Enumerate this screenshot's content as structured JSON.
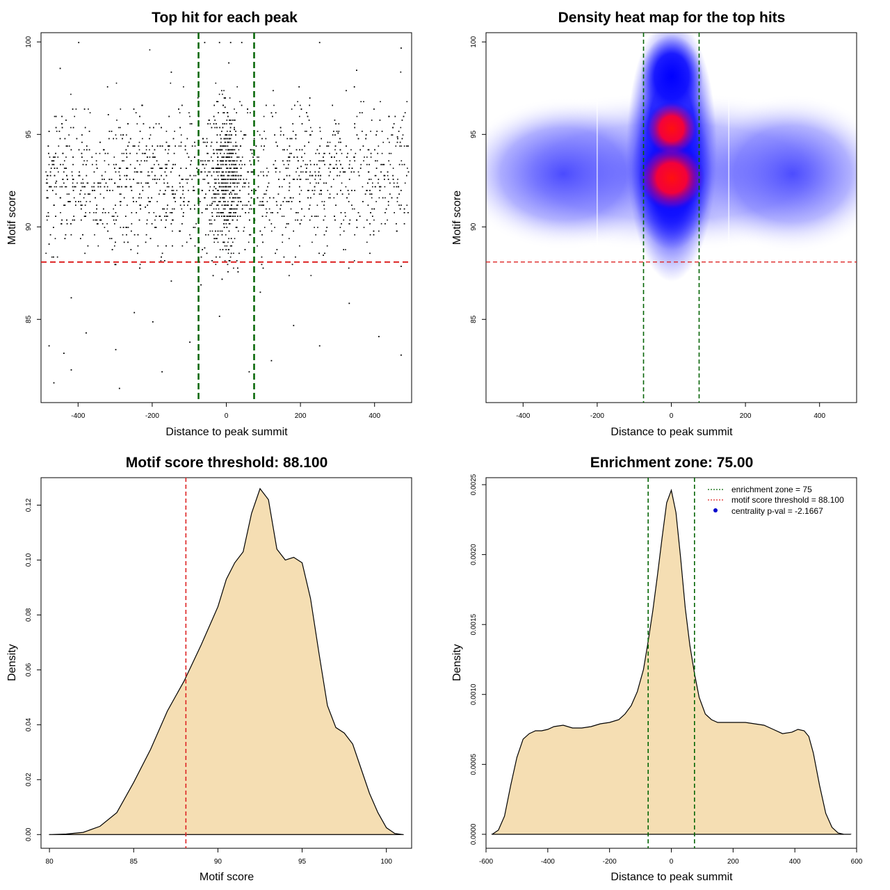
{
  "chart_data": [
    {
      "type": "scatter",
      "title": "Top hit for each peak",
      "xlabel": "Distance to peak summit",
      "ylabel": "Motif score",
      "xlim": [
        -500,
        500
      ],
      "ylim": [
        80.5,
        100.5
      ],
      "xticks": [
        -400,
        -200,
        0,
        200,
        400
      ],
      "xtick_labels": [
        "-400",
        "-200",
        "0",
        "200",
        "400"
      ],
      "yticks": [
        85,
        90,
        95,
        100
      ],
      "ytick_labels": [
        "85",
        "90",
        "95",
        "100"
      ],
      "vlines": [
        -75,
        75
      ],
      "hline": 88.1,
      "vline_color": "#006400",
      "hline_color": "#dd2222",
      "point_color": "#000000",
      "sample_points": [
        [
          -480,
          83.6
        ],
        [
          -467,
          81.6
        ],
        [
          -420,
          82.3
        ],
        [
          -290,
          81.3
        ],
        [
          -175,
          82.2
        ],
        [
          60,
          82.2
        ],
        [
          -60,
          100
        ],
        [
          -20,
          100
        ],
        [
          10,
          100
        ],
        [
          40,
          100
        ],
        [
          -400,
          100
        ],
        [
          250,
          100
        ],
        [
          470,
          99.7
        ],
        [
          -450,
          98.6
        ],
        [
          -150,
          98.4
        ],
        [
          5,
          98.9
        ],
        [
          350,
          98.5
        ],
        [
          -320,
          96.1
        ],
        [
          -5,
          96.5
        ],
        [
          120,
          96.2
        ],
        [
          -480,
          95.2
        ],
        [
          -260,
          94.8
        ],
        [
          20,
          95.3
        ],
        [
          300,
          95.1
        ],
        [
          460,
          94.9
        ],
        [
          -380,
          93.4
        ],
        [
          -110,
          93.2
        ],
        [
          -10,
          93.6
        ],
        [
          30,
          92.8
        ],
        [
          200,
          93.3
        ],
        [
          -460,
          92.5
        ],
        [
          -30,
          92.1
        ],
        [
          10,
          91.9
        ],
        [
          380,
          92.4
        ],
        [
          -220,
          91.1
        ],
        [
          -40,
          91.3
        ],
        [
          50,
          90.8
        ],
        [
          430,
          91
        ],
        [
          -350,
          90.2
        ],
        [
          0,
          90.4
        ],
        [
          150,
          89.6
        ],
        [
          -480,
          89.1
        ],
        [
          -60,
          88.9
        ],
        [
          260,
          88.5
        ],
        [
          -300,
          88
        ],
        [
          30,
          87.6
        ],
        [
          470,
          87.9
        ],
        [
          -150,
          87.1
        ],
        [
          90,
          86.5
        ],
        [
          -420,
          86.2
        ],
        [
          330,
          85.9
        ],
        [
          -250,
          85.4
        ],
        [
          -20,
          85.2
        ],
        [
          180,
          84.7
        ],
        [
          -380,
          84.3
        ],
        [
          410,
          84.1
        ],
        [
          -100,
          83.8
        ],
        [
          250,
          83.6
        ],
        [
          -440,
          83.2
        ],
        [
          470,
          83.1
        ],
        [
          -300,
          83.4
        ],
        [
          120,
          82.8
        ],
        [
          -200,
          84.9
        ],
        [
          -70,
          86.9
        ]
      ]
    },
    {
      "type": "heatmap",
      "title": "Density heat map for the top hits",
      "xlabel": "Distance to peak summit",
      "ylabel": "Motif score",
      "xlim": [
        -500,
        500
      ],
      "ylim": [
        80.5,
        100.5
      ],
      "xticks": [
        -400,
        -200,
        0,
        200,
        400
      ],
      "xtick_labels": [
        "-400",
        "-200",
        "0",
        "200",
        "400"
      ],
      "yticks": [
        85,
        90,
        95,
        100
      ],
      "ytick_labels": [
        "85",
        "90",
        "95",
        "100"
      ],
      "vlines": [
        -75,
        75
      ],
      "hline": 88.1,
      "light_vlines": [
        -200,
        155
      ],
      "colors": {
        "low": "#ffffff",
        "mid": "#0000ff",
        "high": "#ff0000"
      },
      "density_peaks": [
        {
          "x": 0,
          "y": 92.6,
          "level": "high"
        },
        {
          "x": 0,
          "y": 95.2,
          "level": "high"
        },
        {
          "x": 0,
          "y": 98,
          "level": "mid"
        },
        {
          "x": -250,
          "y": 92.8,
          "level": "mid"
        },
        {
          "x": 250,
          "y": 92.5,
          "level": "mid"
        }
      ]
    },
    {
      "type": "area",
      "title": "Motif score threshold: 88.100",
      "xlabel": "Motif score",
      "ylabel": "Density",
      "xlim": [
        79.5,
        101.5
      ],
      "ylim": [
        -0.005,
        0.13
      ],
      "xticks": [
        80,
        85,
        90,
        95,
        100
      ],
      "xtick_labels": [
        "80",
        "85",
        "90",
        "95",
        "100"
      ],
      "yticks": [
        0,
        0.02,
        0.04,
        0.06,
        0.08,
        0.1,
        0.12
      ],
      "ytick_labels": [
        "0.00",
        "0.02",
        "0.04",
        "0.06",
        "0.08",
        "0.10",
        "0.12"
      ],
      "vline": 88.1,
      "vline_color": "#dd2222",
      "fill": "#f5deb3",
      "x": [
        80,
        81,
        82,
        83,
        84,
        85,
        86,
        87,
        88,
        89,
        90,
        90.5,
        91,
        91.5,
        92,
        92.5,
        93,
        93.5,
        94,
        94.5,
        95,
        95.5,
        96,
        96.5,
        97,
        97.5,
        98,
        98.5,
        99,
        99.5,
        100,
        100.5,
        101
      ],
      "y": [
        0,
        0.0002,
        0.0008,
        0.003,
        0.008,
        0.019,
        0.031,
        0.045,
        0.056,
        0.069,
        0.083,
        0.093,
        0.099,
        0.103,
        0.117,
        0.126,
        0.122,
        0.104,
        0.1,
        0.101,
        0.099,
        0.086,
        0.066,
        0.047,
        0.039,
        0.037,
        0.033,
        0.024,
        0.015,
        0.008,
        0.0025,
        0.0004,
        0
      ]
    },
    {
      "type": "area",
      "title": "Enrichment zone: 75.00",
      "xlabel": "Distance to peak summit",
      "ylabel": "Density",
      "xlim": [
        -600,
        600
      ],
      "ylim": [
        -0.0001,
        0.00255
      ],
      "xticks": [
        -600,
        -400,
        -200,
        0,
        200,
        400,
        600
      ],
      "xtick_labels": [
        "-600",
        "-400",
        "-200",
        "0",
        "200",
        "400",
        "600"
      ],
      "yticks": [
        0,
        0.0005,
        0.001,
        0.0015,
        0.002,
        0.0025
      ],
      "ytick_labels": [
        "0.0000",
        "0.0005",
        "0.0010",
        "0.0015",
        "0.0020",
        "0.0025"
      ],
      "vlines": [
        -75,
        75
      ],
      "vline_color": "#006400",
      "fill": "#f5deb3",
      "x": [
        -580,
        -560,
        -540,
        -520,
        -500,
        -480,
        -460,
        -440,
        -420,
        -400,
        -380,
        -350,
        -320,
        -290,
        -260,
        -230,
        -200,
        -170,
        -150,
        -130,
        -110,
        -90,
        -75,
        -60,
        -45,
        -30,
        -15,
        0,
        15,
        30,
        45,
        60,
        75,
        90,
        110,
        130,
        150,
        180,
        210,
        240,
        270,
        300,
        330,
        360,
        390,
        410,
        430,
        445,
        460,
        480,
        500,
        520,
        540,
        560,
        580
      ],
      "y": [
        0,
        3e-05,
        0.00013,
        0.00035,
        0.00055,
        0.00068,
        0.00072,
        0.00074,
        0.00074,
        0.00075,
        0.00077,
        0.00078,
        0.00076,
        0.00076,
        0.00077,
        0.00079,
        0.0008,
        0.00082,
        0.00086,
        0.00092,
        0.00102,
        0.00118,
        0.00138,
        0.0016,
        0.00185,
        0.00212,
        0.00237,
        0.00246,
        0.0023,
        0.00198,
        0.00162,
        0.00135,
        0.00115,
        0.00098,
        0.00086,
        0.00082,
        0.0008,
        0.0008,
        0.0008,
        0.0008,
        0.00079,
        0.00078,
        0.00075,
        0.00072,
        0.00073,
        0.00075,
        0.00074,
        0.0007,
        0.00058,
        0.00035,
        0.00015,
        5e-05,
        1e-05,
        0,
        0
      ],
      "legend": [
        {
          "label": "enrichment zone = 75",
          "color": "#006400",
          "kind": "dotted-line"
        },
        {
          "label": "motif score threshold = 88.100",
          "color": "#dd2222",
          "kind": "dotted-line"
        },
        {
          "label": "centrality p-val = -2.1667",
          "color": "#0000cc",
          "kind": "point"
        }
      ],
      "legend_position": "top-right"
    }
  ]
}
